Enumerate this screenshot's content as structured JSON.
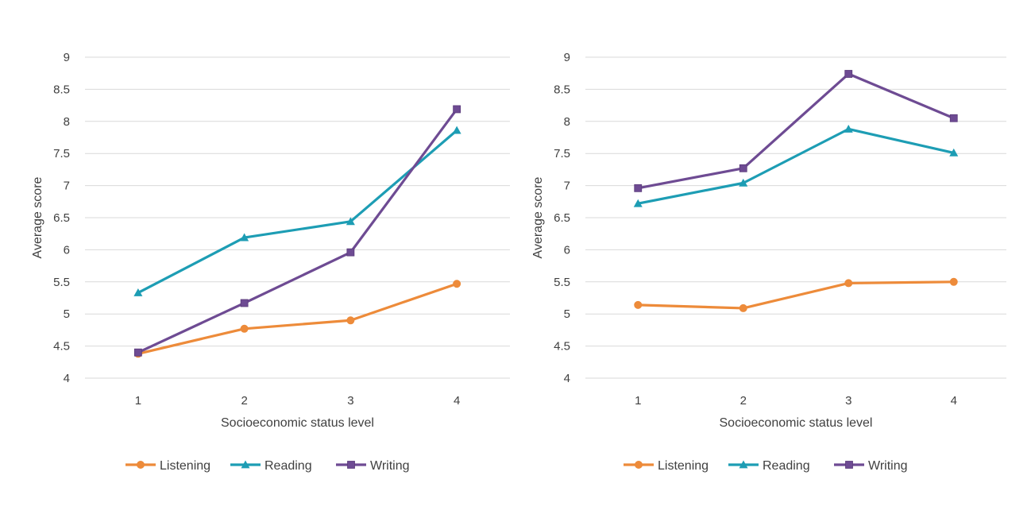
{
  "chart_data": [
    {
      "type": "line",
      "title": "",
      "xlabel": "Socioeconomic status level",
      "ylabel": "Average score",
      "categories": [
        "1",
        "2",
        "3",
        "4"
      ],
      "ylim": [
        4,
        9
      ],
      "yticks": [
        "4",
        "4.5",
        "5",
        "5.5",
        "6",
        "6.5",
        "7",
        "7.5",
        "8",
        "8.5",
        "9"
      ],
      "grid": true,
      "legend_position": "bottom",
      "series": [
        {
          "name": "Listening",
          "color": "#ED8B3A",
          "marker": "circle",
          "values": [
            4.38,
            4.77,
            4.9,
            5.47
          ]
        },
        {
          "name": "Reading",
          "color": "#1D9DB4",
          "marker": "triangle",
          "values": [
            5.33,
            6.19,
            6.44,
            7.86
          ]
        },
        {
          "name": "Writing",
          "color": "#6E4B93",
          "marker": "square",
          "values": [
            4.4,
            5.17,
            5.96,
            8.19
          ]
        }
      ]
    },
    {
      "type": "line",
      "title": "",
      "xlabel": "Socioeconomic status level",
      "ylabel": "Average score",
      "categories": [
        "1",
        "2",
        "3",
        "4"
      ],
      "ylim": [
        4,
        9
      ],
      "yticks": [
        "4",
        "4.5",
        "5",
        "5.5",
        "6",
        "6.5",
        "7",
        "7.5",
        "8",
        "8.5",
        "9"
      ],
      "grid": true,
      "legend_position": "bottom",
      "series": [
        {
          "name": "Listening",
          "color": "#ED8B3A",
          "marker": "circle",
          "values": [
            5.14,
            5.09,
            5.48,
            5.5
          ]
        },
        {
          "name": "Reading",
          "color": "#1D9DB4",
          "marker": "triangle",
          "values": [
            6.72,
            7.04,
            7.88,
            7.51
          ]
        },
        {
          "name": "Writing",
          "color": "#6E4B93",
          "marker": "square",
          "values": [
            6.96,
            7.27,
            8.74,
            8.05
          ]
        }
      ]
    }
  ]
}
